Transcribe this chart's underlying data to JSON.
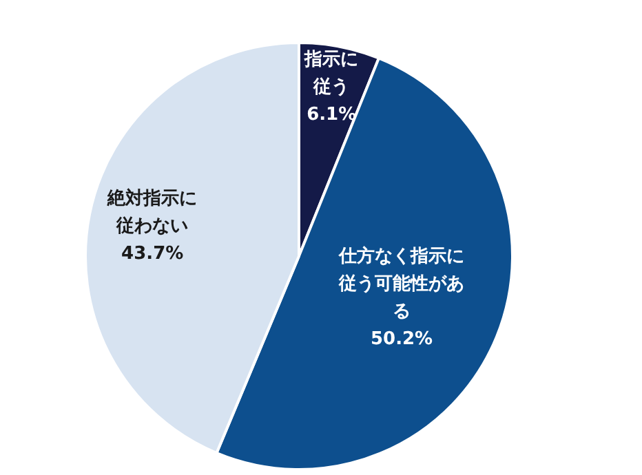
{
  "chart_data": {
    "type": "pie",
    "categories": [
      "指示に従う",
      "仕方なく指示に従う可能性がある",
      "絶対指示に従わない"
    ],
    "values": [
      6.1,
      50.2,
      43.7
    ],
    "colors": [
      "#141a48",
      "#0d4f8e",
      "#d7e3f1"
    ],
    "value_labels": [
      "6.1%",
      "50.2%",
      "43.7%"
    ]
  }
}
